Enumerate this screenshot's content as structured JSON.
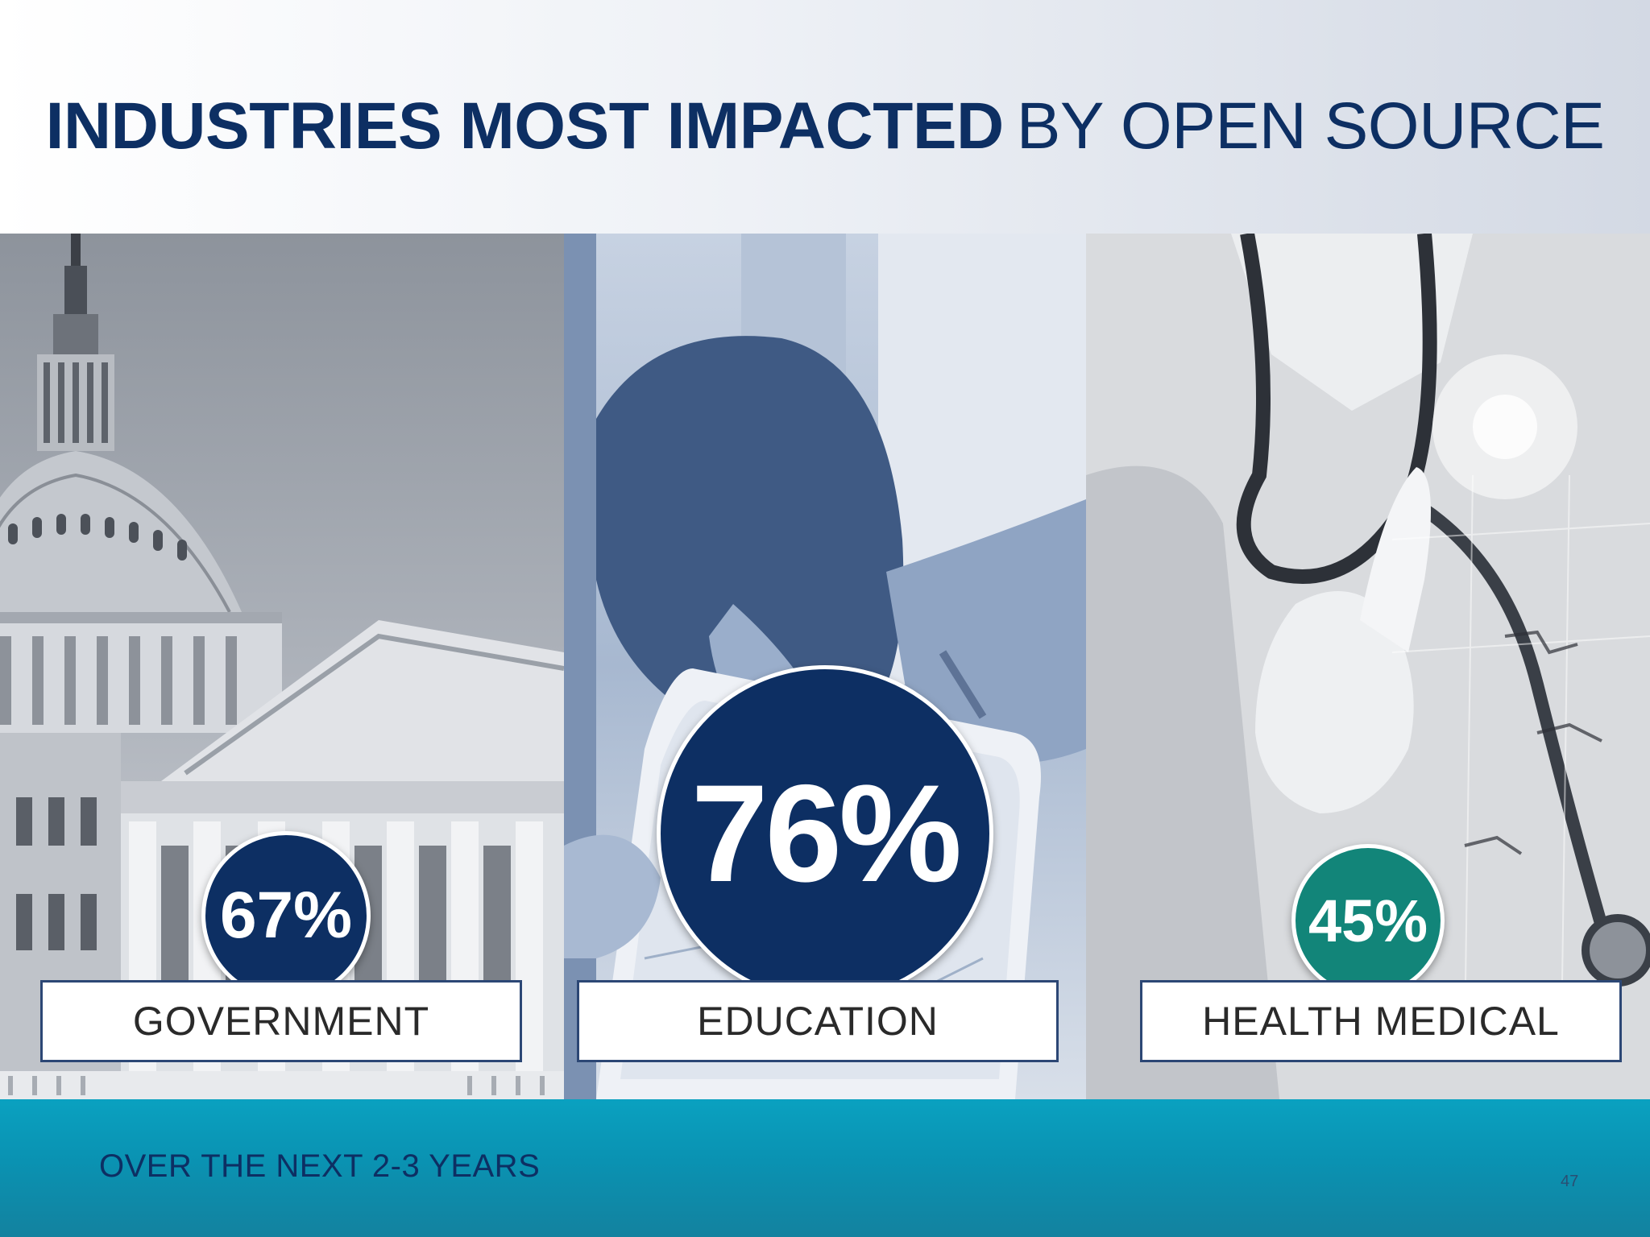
{
  "title": {
    "strong": "INDUSTRIES MOST IMPACTED",
    "light": "BY OPEN SOURCE"
  },
  "industries": [
    {
      "label": "GOVERNMENT",
      "value": "67%",
      "color": "#0d2f63",
      "icon": "capitol-building-photo"
    },
    {
      "label": "EDUCATION",
      "value": "76%",
      "color": "#0d2f63",
      "icon": "student-with-tablet-photo"
    },
    {
      "label": "HEALTH MEDICAL",
      "value": "45%",
      "color": "#128579",
      "icon": "doctor-with-stethoscope-photo"
    }
  ],
  "footer": {
    "text": "OVER THE NEXT 2-3 YEARS",
    "page_number": "47"
  },
  "colors": {
    "navy": "#0d2f63",
    "teal": "#128579",
    "band": "#0a9cbc"
  }
}
